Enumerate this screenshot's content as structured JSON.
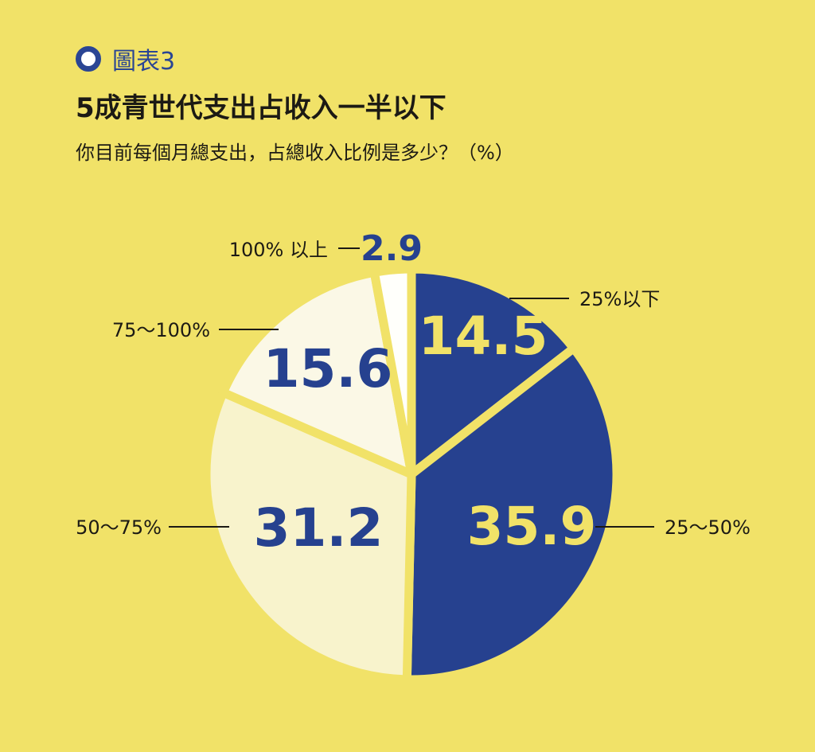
{
  "header": {
    "badge": "圖表3",
    "title": "5成青世代支出占收入一半以下",
    "subtitle": "你目前每個月總支出，占總收入比例是多少？（%）"
  },
  "chart_data": {
    "type": "pie",
    "title": "5成青世代支出占收入一半以下",
    "subtitle": "你目前每個月總支出，占總收入比例是多少？（%）",
    "unit": "%",
    "start": "12 o'clock, clockwise",
    "slices": [
      {
        "label": "25%以下",
        "value": 14.5,
        "color": "#26418F",
        "text_color": "#F1E268"
      },
      {
        "label": "25～50%",
        "value": 35.9,
        "color": "#26418F",
        "text_color": "#F1E268"
      },
      {
        "label": "50～75%",
        "value": 31.2,
        "color": "#F8F3CC",
        "text_color": "#26418F"
      },
      {
        "label": "75～100%",
        "value": 15.6,
        "color": "#FBF8E6",
        "text_color": "#26418F"
      },
      {
        "label": "100% 以上",
        "value": 2.9,
        "color": "#FFFFFB",
        "text_color": "#26418F"
      }
    ],
    "background": "#F1E268"
  }
}
